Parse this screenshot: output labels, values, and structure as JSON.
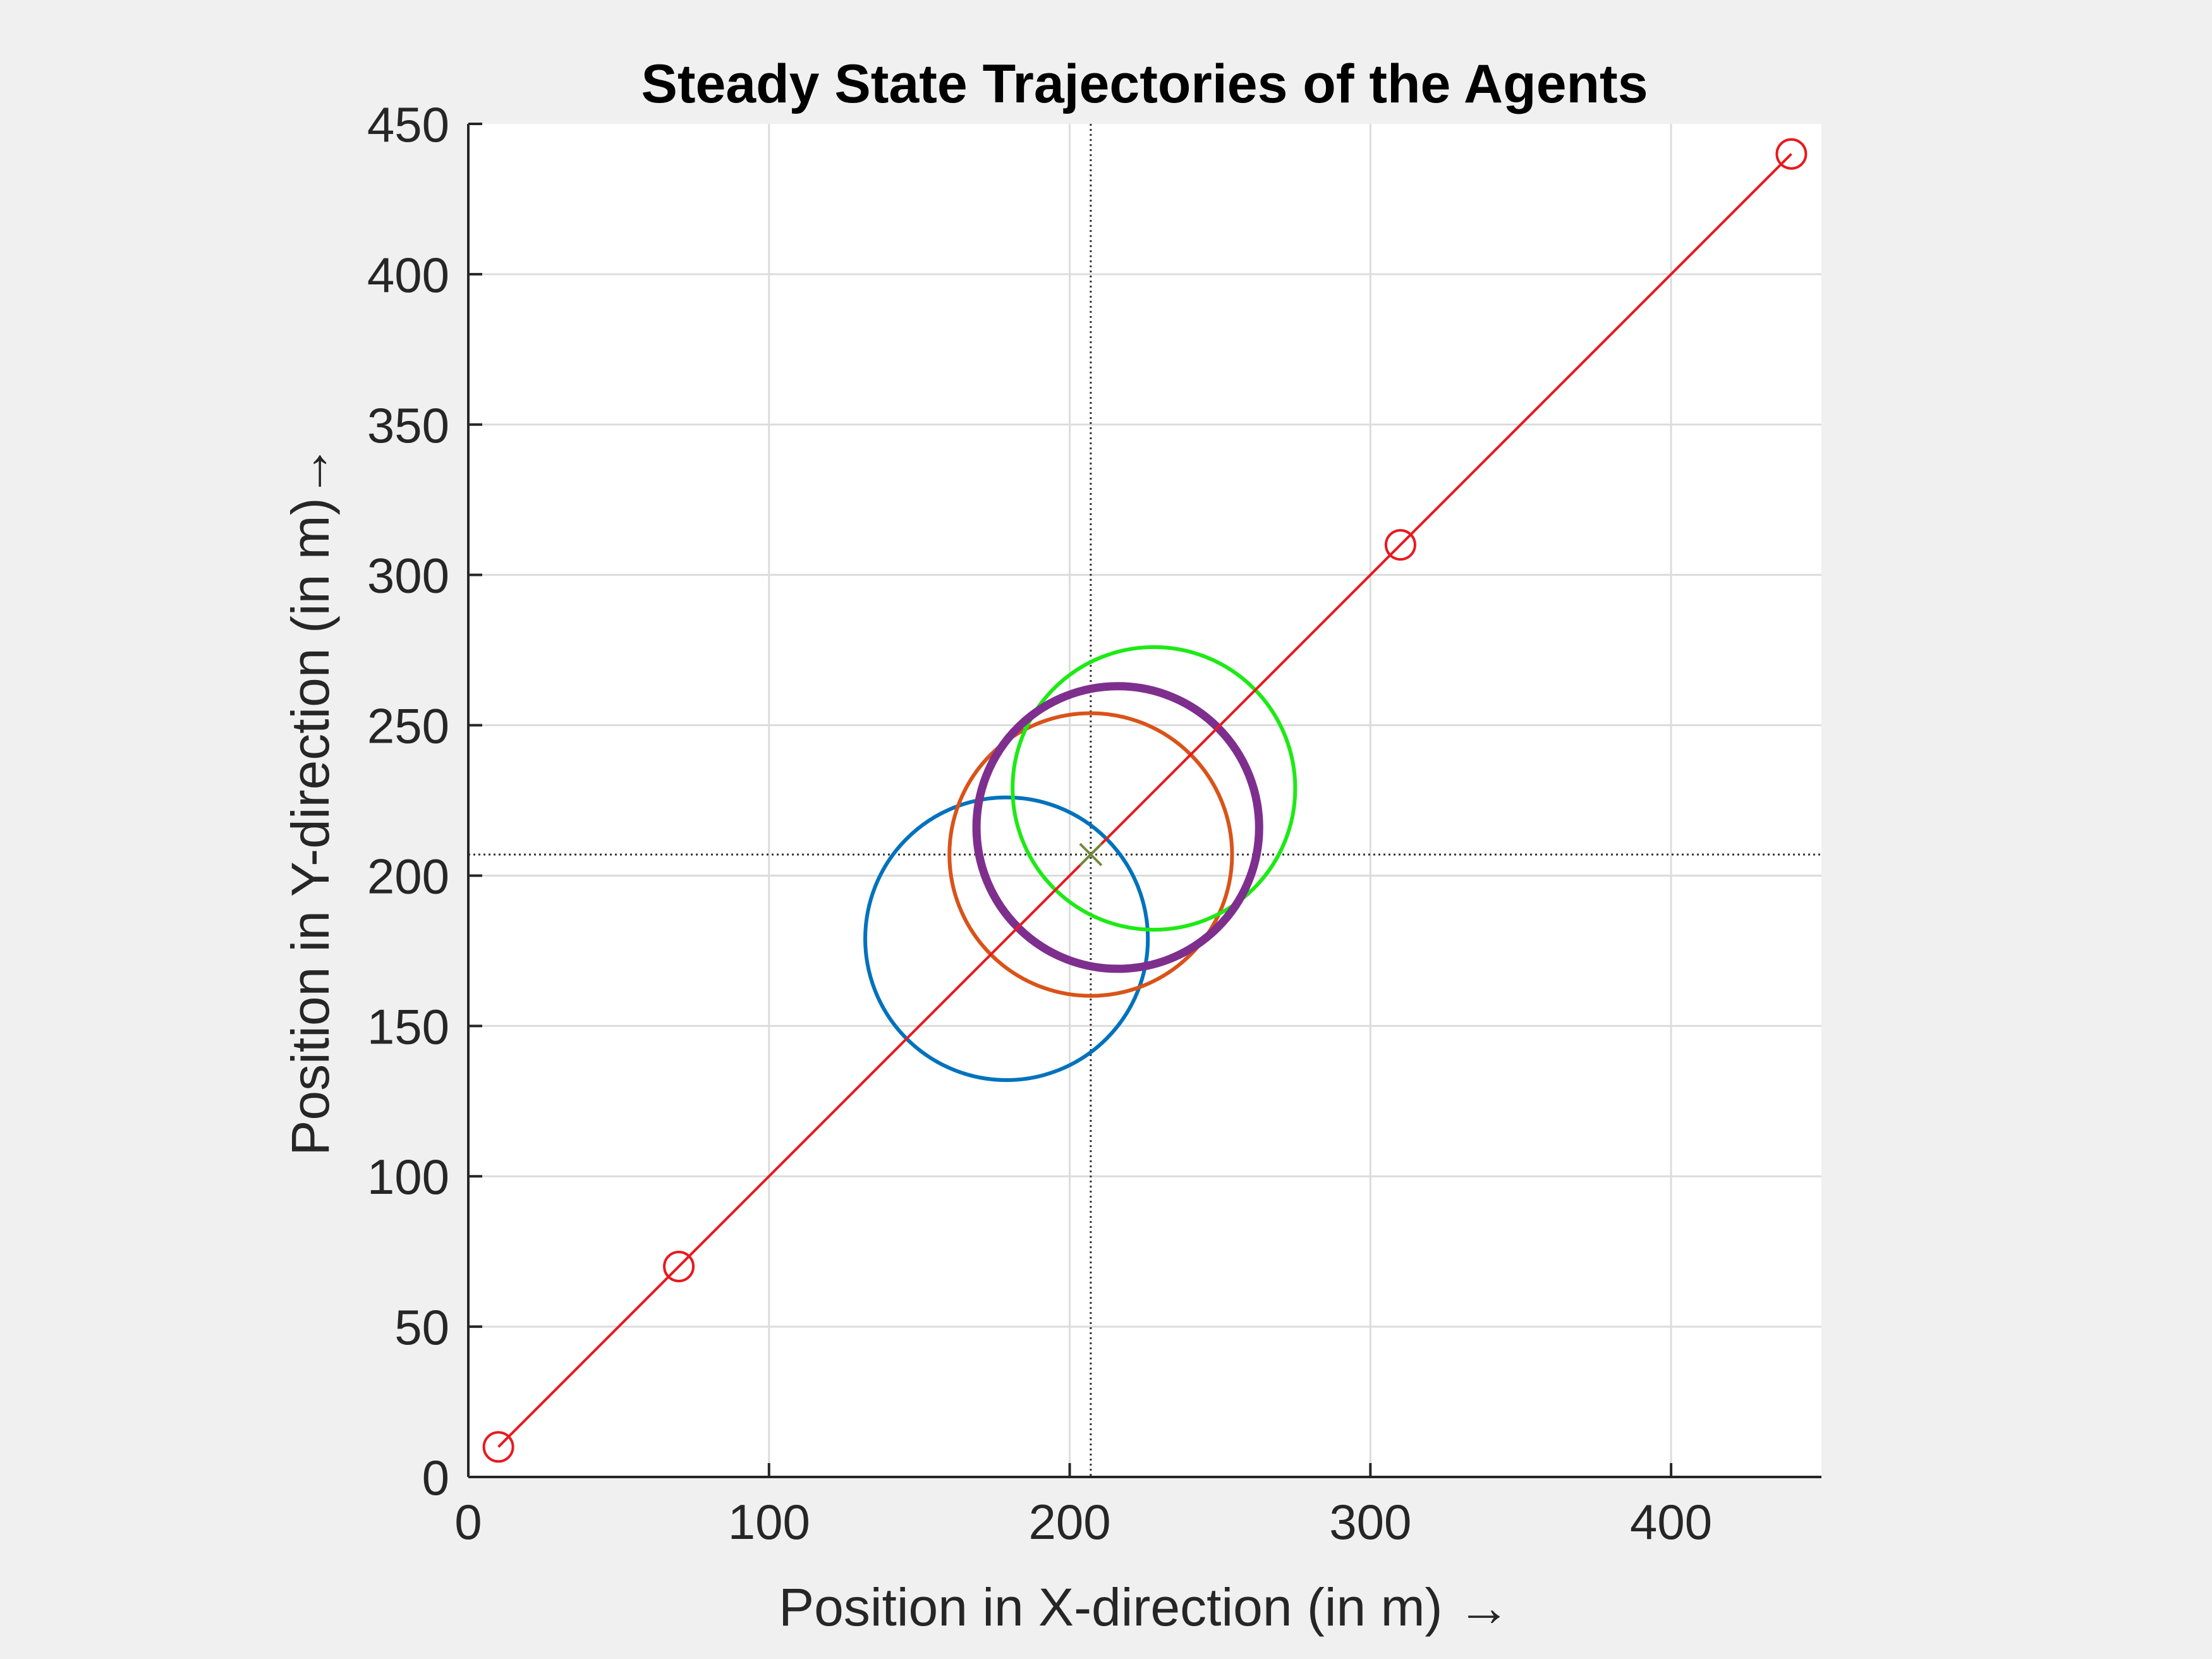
{
  "chart_data": {
    "type": "line",
    "title": "Steady State Trajectories of the Agents",
    "xlabel": "Position in X-direction (in m) →",
    "ylabel": "Position in Y-direction (in m)→",
    "xlim": [
      0,
      450
    ],
    "ylim": [
      0,
      450
    ],
    "xticks": [
      0,
      100,
      200,
      300,
      400
    ],
    "yticks": [
      0,
      50,
      100,
      150,
      200,
      250,
      300,
      350,
      400,
      450
    ],
    "grid": true,
    "legend": "none",
    "line_series": {
      "color": "#e8191e",
      "marker": "circle",
      "points": [
        [
          10,
          10
        ],
        [
          70,
          70
        ],
        [
          310,
          310
        ],
        [
          440,
          440
        ]
      ]
    },
    "circles": [
      {
        "cx": 179,
        "cy": 179,
        "r": 47,
        "color": "#0072bd"
      },
      {
        "cx": 207,
        "cy": 207,
        "r": 47,
        "color": "#d95319"
      },
      {
        "cx": 228,
        "cy": 229,
        "r": 47,
        "color": "#1dea15"
      },
      {
        "cx": 216,
        "cy": 216,
        "r": 47,
        "color": "#7e2f8e",
        "thick": true
      }
    ],
    "center": {
      "x": 207,
      "y": 207,
      "marker": "x",
      "color": "#6f8a3a"
    },
    "crosshair": {
      "x": 207,
      "y": 207
    }
  }
}
